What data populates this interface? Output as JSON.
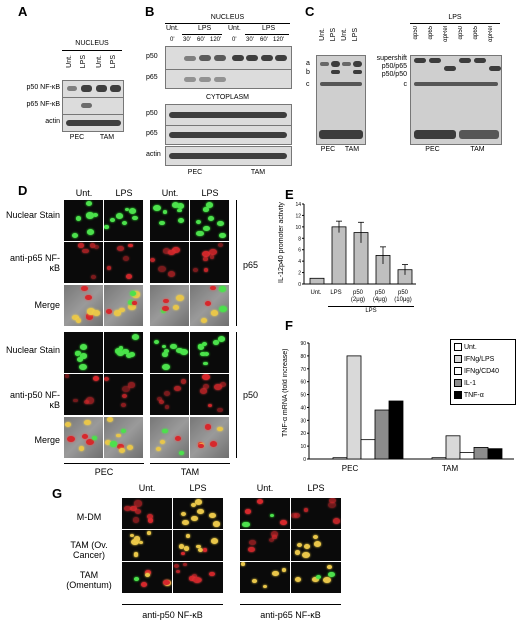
{
  "panels": {
    "A": {
      "label": "A",
      "header": "NUCLEUS",
      "lanes": [
        "Unt.",
        "LPS",
        "Unt.",
        "LPS"
      ],
      "rows": [
        "p50 NF-κB",
        "p65 NF-κB",
        "actin"
      ],
      "groups": [
        "PEC",
        "TAM"
      ]
    },
    "B": {
      "label": "B",
      "header_top": "NUCLEUS",
      "header_bottom": "CYTOPLASM",
      "treat": [
        "Unt.",
        "LPS",
        "Unt.",
        "LPS"
      ],
      "times": [
        "0'",
        "30'",
        "60'",
        "120'",
        "0'",
        "30'",
        "60'",
        "120'"
      ],
      "rows_top": [
        "p50",
        "p65"
      ],
      "rows_bottom": [
        "p50",
        "p65",
        "actin"
      ],
      "groups": [
        "PEC",
        "TAM"
      ]
    },
    "C": {
      "label": "C",
      "header": "LPS",
      "lanes_left": [
        "Unt.",
        "LPS",
        "Unt.",
        "LPS"
      ],
      "lanes_right": [
        "αp50",
        "αp65",
        "αpRel",
        "αp50",
        "αp65",
        "αpRel"
      ],
      "bands_left": [
        "a",
        "b",
        "c"
      ],
      "bands_right": [
        "supershift",
        "p50/p65",
        "p50/p50",
        "c"
      ],
      "groups_left": [
        "PEC",
        "TAM"
      ],
      "groups_right": [
        "PEC",
        "TAM"
      ]
    },
    "D": {
      "label": "D",
      "cols": [
        "Unt.",
        "LPS",
        "Unt.",
        "LPS"
      ],
      "rows": [
        "Nuclear Stain",
        "anti-p65 NF-κB",
        "Merge",
        "Nuclear Stain",
        "anti-p50 NF-κB",
        "Merge"
      ],
      "side": [
        "p65",
        "p50"
      ],
      "groups": [
        "PEC",
        "TAM"
      ]
    },
    "E": {
      "label": "E",
      "ylabel": "IL-12p40 promoter activity",
      "conditions": [
        "Unt.",
        "LPS",
        "p50 (2μg)",
        "p50 (4μg)",
        "p50 (10μg)"
      ],
      "group_label": "LPS"
    },
    "F": {
      "label": "F",
      "ylabel": "TNF-α mRNA (fold increase)",
      "legend": [
        "Unt.",
        "IFNg/LPS",
        "IFNg/CD40",
        "IL-1",
        "TNF-α"
      ],
      "groups": [
        "PEC",
        "TAM"
      ]
    },
    "G": {
      "label": "G",
      "cols": [
        "Unt.",
        "LPS",
        "Unt.",
        "LPS"
      ],
      "rows": [
        "M-DM",
        "TAM (Ov. Cancer)",
        "TAM (Omentum)"
      ],
      "groups": [
        "anti-p50 NF-κB",
        "anti-p65 NF-κB"
      ]
    }
  },
  "chart_data": [
    {
      "type": "bar",
      "categories": [
        "Unt.",
        "LPS",
        "p50 (2μg)",
        "p50 (4μg)",
        "p50 (10μg)"
      ],
      "values": [
        1,
        10,
        9,
        5,
        2.5
      ],
      "errors": [
        0,
        1,
        1.8,
        1.5,
        0.9
      ],
      "ylabel": "IL-12p40 promoter activity",
      "ylim": [
        0,
        14
      ],
      "yticks": [
        0,
        2,
        4,
        6,
        8,
        10,
        12,
        14
      ]
    },
    {
      "type": "bar",
      "categories": [
        "PEC",
        "TAM"
      ],
      "series": [
        {
          "name": "Unt.",
          "color": "#ffffff",
          "values": [
            1,
            1
          ]
        },
        {
          "name": "IFNg/LPS",
          "color": "#d9d9d9",
          "values": [
            80,
            18
          ]
        },
        {
          "name": "IFNg/CD40",
          "color": "#ffffff",
          "values": [
            15,
            5
          ]
        },
        {
          "name": "IL-1",
          "color": "#8c8c8c",
          "values": [
            38,
            9
          ]
        },
        {
          "name": "TNF-α",
          "color": "#000000",
          "values": [
            45,
            8
          ]
        }
      ],
      "ylabel": "TNF-α mRNA (fold increase)",
      "ylim": [
        0,
        90
      ],
      "yticks": [
        0,
        10,
        20,
        30,
        40,
        50,
        60,
        70,
        80,
        90
      ]
    }
  ]
}
